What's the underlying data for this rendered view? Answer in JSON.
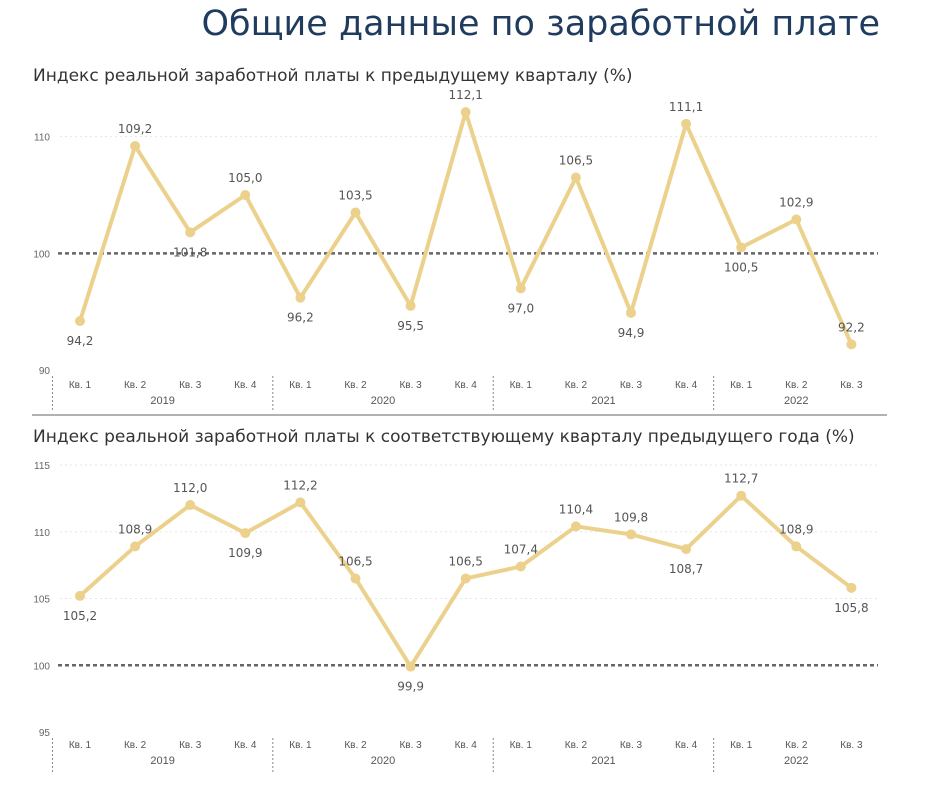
{
  "page": {
    "title": "Общие данные по заработной плате"
  },
  "colors": {
    "series": "#ebd18c",
    "reference_line": "#666666",
    "title": "#1f3b5e",
    "separator": "#999999"
  },
  "chart_data": [
    {
      "type": "line",
      "title": "Индекс реальной заработной платы к предыдущему кварталу (%)",
      "categories": [
        "Кв. 1",
        "Кв. 2",
        "Кв. 3",
        "Кв. 4",
        "Кв. 1",
        "Кв. 2",
        "Кв. 3",
        "Кв. 4",
        "Кв. 1",
        "Кв. 2",
        "Кв. 3",
        "Кв. 4",
        "Кв. 1",
        "Кв. 2",
        "Кв. 3"
      ],
      "years": [
        {
          "label": "2019",
          "quarters": 4
        },
        {
          "label": "2020",
          "quarters": 4
        },
        {
          "label": "2021",
          "quarters": 4
        },
        {
          "label": "2022",
          "quarters": 3
        }
      ],
      "values": [
        94.2,
        109.2,
        101.8,
        105.0,
        96.2,
        103.5,
        95.5,
        112.1,
        97.0,
        106.5,
        94.9,
        111.1,
        100.5,
        102.9,
        92.2
      ],
      "data_labels": [
        "94,2",
        "109,2",
        "101,8",
        "105,0",
        "96,2",
        "103,5",
        "95,5",
        "112,1",
        "97,0",
        "106,5",
        "94,9",
        "111,1",
        "100,5",
        "102,9",
        "92,2"
      ],
      "label_positions": [
        "below",
        "above",
        "below",
        "above",
        "below",
        "above",
        "below",
        "above",
        "below",
        "above",
        "below",
        "above",
        "below",
        "above",
        "above"
      ],
      "yticks": [
        90,
        100,
        110
      ],
      "ytick_labels": [
        "90",
        "100",
        "110"
      ],
      "ylim": [
        90,
        114
      ],
      "reference_line": 100,
      "xlabel": "",
      "ylabel": ""
    },
    {
      "type": "line",
      "title": "Индекс реальной заработной платы к соответствующему кварталу предыдущего года (%)",
      "categories": [
        "Кв. 1",
        "Кв. 2",
        "Кв. 3",
        "Кв. 4",
        "Кв. 1",
        "Кв. 2",
        "Кв. 3",
        "Кв. 4",
        "Кв. 1",
        "Кв. 2",
        "Кв. 3",
        "Кв. 4",
        "Кв. 1",
        "Кв. 2",
        "Кв. 3"
      ],
      "years": [
        {
          "label": "2019",
          "quarters": 4
        },
        {
          "label": "2020",
          "quarters": 4
        },
        {
          "label": "2021",
          "quarters": 4
        },
        {
          "label": "2022",
          "quarters": 3
        }
      ],
      "values": [
        105.2,
        108.9,
        112.0,
        109.9,
        112.2,
        106.5,
        99.9,
        106.5,
        107.4,
        110.4,
        109.8,
        108.7,
        112.7,
        108.9,
        105.8
      ],
      "data_labels": [
        "105,2",
        "108,9",
        "112,0",
        "109,9",
        "112,2",
        "106,5",
        "99,9",
        "106,5",
        "107,4",
        "110,4",
        "109,8",
        "108,7",
        "112,7",
        "108,9",
        "105,8"
      ],
      "label_positions": [
        "below",
        "above",
        "above",
        "below",
        "above",
        "above",
        "below",
        "above",
        "above",
        "above",
        "above",
        "below",
        "above",
        "above",
        "below"
      ],
      "yticks": [
        95,
        100,
        105,
        110,
        115
      ],
      "ytick_labels": [
        "95",
        "100",
        "105",
        "110",
        "115"
      ],
      "ylim": [
        95,
        115
      ],
      "reference_line": 100,
      "xlabel": "",
      "ylabel": ""
    }
  ]
}
